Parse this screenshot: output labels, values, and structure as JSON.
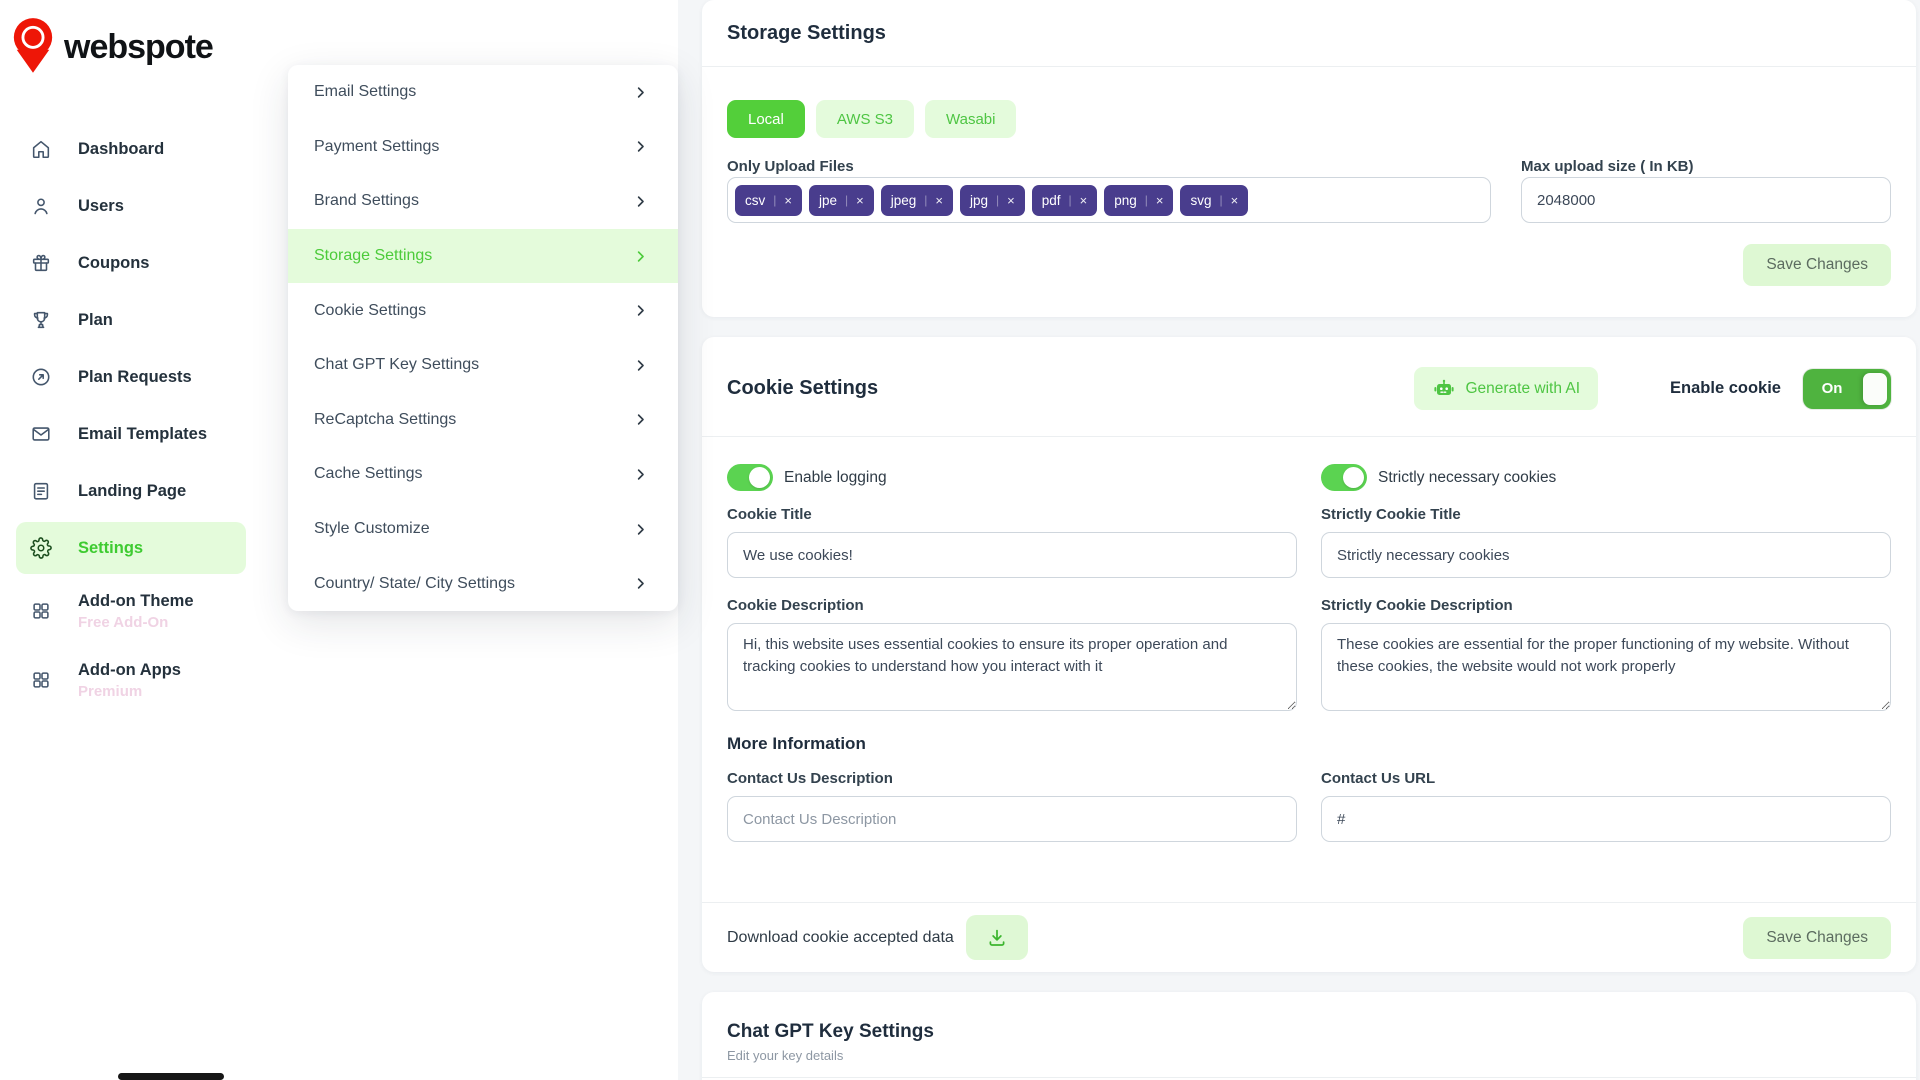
{
  "brand": {
    "name": "webspote"
  },
  "sidebar": {
    "items": [
      {
        "label": "Dashboard",
        "icon": "home"
      },
      {
        "label": "Users",
        "icon": "user"
      },
      {
        "label": "Coupons",
        "icon": "gift"
      },
      {
        "label": "Plan",
        "icon": "trophy"
      },
      {
        "label": "Plan Requests",
        "icon": "arrow-circle"
      },
      {
        "label": "Email Templates",
        "icon": "mail"
      },
      {
        "label": "Landing Page",
        "icon": "page"
      },
      {
        "label": "Settings",
        "icon": "gear",
        "active": true
      },
      {
        "label": "Add-on Theme",
        "sub": "Free Add-On",
        "icon": "grid"
      },
      {
        "label": "Add-on Apps",
        "sub": "Premium",
        "icon": "grid"
      }
    ]
  },
  "settings_menu": {
    "active": "Storage Settings",
    "items": [
      "Email Settings",
      "Payment Settings",
      "Brand Settings",
      "Storage Settings",
      "Cookie Settings",
      "Chat GPT Key Settings",
      "ReCaptcha Settings",
      "Cache Settings",
      "Style Customize",
      "Country/ State/ City Settings"
    ]
  },
  "storage": {
    "title": "Storage Settings",
    "tabs": [
      "Local",
      "AWS S3",
      "Wasabi"
    ],
    "active_tab": "Local",
    "upload_files_label": "Only Upload Files",
    "file_tags": [
      "csv",
      "jpe",
      "jpeg",
      "jpg",
      "pdf",
      "png",
      "svg"
    ],
    "max_upload_label": "Max upload size ( In KB)",
    "max_upload_value": "2048000",
    "save_label": "Save Changes"
  },
  "cookie": {
    "title": "Cookie Settings",
    "generate_ai_label": "Generate with AI",
    "enable_cookie_label": "Enable cookie",
    "toggle_on_label": "On",
    "enable_logging_label": "Enable logging",
    "strictly_toggle_label": "Strictly necessary cookies",
    "cookie_title_label": "Cookie Title",
    "cookie_title_value": "We use cookies!",
    "strict_title_label": "Strictly Cookie Title",
    "strict_title_value": "Strictly necessary cookies",
    "cookie_desc_label": "Cookie Description",
    "cookie_desc_value": "Hi, this website uses essential cookies to ensure its proper operation and tracking cookies to understand how you interact with it",
    "strict_desc_label": "Strictly Cookie Description",
    "strict_desc_value": "These cookies are essential for the proper functioning of my website. Without these cookies, the website would not work properly",
    "more_info_label": "More Information",
    "contact_desc_label": "Contact Us Description",
    "contact_desc_placeholder": "Contact Us Description",
    "contact_url_label": "Contact Us URL",
    "contact_url_value": "#",
    "download_label": "Download cookie accepted data",
    "save_label": "Save Changes"
  },
  "chatgpt": {
    "title": "Chat GPT Key Settings",
    "subtitle": "Edit your key details"
  },
  "colors": {
    "primary_green": "#53cf3a",
    "pale_green": "#e4fbdc",
    "green_text": "#4ec543",
    "switch_green": "#4fb33f",
    "tag_purple": "#493d8d",
    "logo_red": "#ee1607",
    "addon_sub_pink": "#f0d3e4"
  }
}
